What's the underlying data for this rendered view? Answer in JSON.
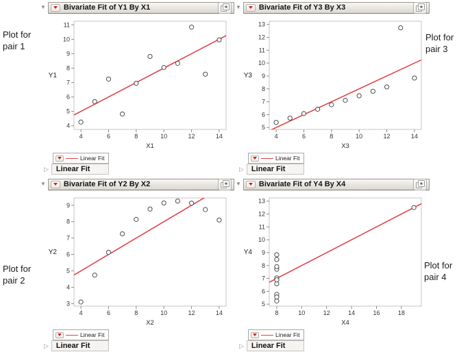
{
  "colors": {
    "fit_line": "#e0444a",
    "red_triangle_button": "#cc1f1f"
  },
  "icons": {
    "disclosure_open": "▼",
    "disclosure_closed": "▷"
  },
  "annotations": {
    "pair1": {
      "text": "Plot for pair 1"
    },
    "pair2": {
      "text": "Plot for pair 2"
    },
    "pair3": {
      "text": "Plot for pair 3"
    },
    "pair4": {
      "text": "Plot for pair 4"
    }
  },
  "panels": {
    "y1x1": {
      "title": "Bivariate Fit of Y1 By X1",
      "y_label": "Y1",
      "x_label": "X1",
      "legend_label": "Linear Fit",
      "section_label": "Linear Fit",
      "chart": {
        "type": "scatter",
        "x_ticks": [
          4,
          6,
          8,
          10,
          12,
          14
        ],
        "y_ticks": [
          4,
          5,
          6,
          7,
          8,
          9,
          10,
          11
        ],
        "x_range": [
          3.5,
          14.5
        ],
        "y_range": [
          3.75,
          11.25
        ],
        "points": [
          [
            10,
            8.04
          ],
          [
            8,
            6.95
          ],
          [
            13,
            7.58
          ],
          [
            9,
            8.81
          ],
          [
            11,
            8.33
          ],
          [
            14,
            9.96
          ],
          [
            6,
            7.24
          ],
          [
            4,
            4.26
          ],
          [
            12,
            10.84
          ],
          [
            7,
            4.82
          ],
          [
            5,
            5.68
          ]
        ],
        "fit": {
          "intercept": 3.0,
          "slope": 0.5
        }
      }
    },
    "y3x3": {
      "title": "Bivariate Fit of Y3 By X3",
      "y_label": "Y3",
      "x_label": "X3",
      "legend_label": "Linear Fit",
      "section_label": "Linear Fit",
      "chart": {
        "type": "scatter",
        "x_ticks": [
          4,
          6,
          8,
          10,
          12,
          14
        ],
        "y_ticks": [
          5,
          6,
          7,
          8,
          9,
          10,
          11,
          12,
          13
        ],
        "x_range": [
          3.5,
          14.5
        ],
        "y_range": [
          4.85,
          13.25
        ],
        "points": [
          [
            10,
            7.46
          ],
          [
            8,
            6.77
          ],
          [
            13,
            12.74
          ],
          [
            9,
            7.11
          ],
          [
            11,
            7.81
          ],
          [
            14,
            8.84
          ],
          [
            6,
            6.08
          ],
          [
            4,
            5.39
          ],
          [
            12,
            8.15
          ],
          [
            7,
            6.42
          ],
          [
            5,
            5.73
          ]
        ],
        "fit": {
          "intercept": 3.0,
          "slope": 0.5
        }
      }
    },
    "y2x2": {
      "title": "Bivariate Fit of Y2 By X2",
      "y_label": "Y2",
      "x_label": "X2",
      "legend_label": "Linear Fit",
      "section_label": "Linear Fit",
      "chart": {
        "type": "scatter",
        "x_ticks": [
          4,
          6,
          8,
          10,
          12,
          14
        ],
        "y_ticks": [
          3,
          4,
          5,
          6,
          7,
          8,
          9
        ],
        "x_range": [
          3.5,
          14.5
        ],
        "y_range": [
          2.85,
          9.45
        ],
        "points": [
          [
            10,
            9.14
          ],
          [
            8,
            8.14
          ],
          [
            13,
            8.74
          ],
          [
            9,
            8.77
          ],
          [
            11,
            9.26
          ],
          [
            14,
            8.1
          ],
          [
            6,
            6.13
          ],
          [
            4,
            3.1
          ],
          [
            12,
            9.13
          ],
          [
            7,
            7.26
          ],
          [
            5,
            4.74
          ]
        ],
        "fit": {
          "intercept": 3.0,
          "slope": 0.5
        }
      }
    },
    "y4x4": {
      "title": "Bivariate Fit of Y4 By X4",
      "y_label": "Y4",
      "x_label": "X4",
      "legend_label": "Linear Fit",
      "section_label": "Linear Fit",
      "chart": {
        "type": "scatter",
        "x_ticks": [
          8,
          10,
          12,
          14,
          16,
          18
        ],
        "y_ticks": [
          5,
          6,
          7,
          8,
          9,
          10,
          11,
          12,
          13
        ],
        "x_range": [
          7.4,
          19.6
        ],
        "y_range": [
          4.85,
          13.25
        ],
        "points": [
          [
            8,
            6.58
          ],
          [
            8,
            5.76
          ],
          [
            8,
            7.71
          ],
          [
            8,
            8.84
          ],
          [
            8,
            8.47
          ],
          [
            8,
            7.04
          ],
          [
            8,
            5.25
          ],
          [
            19,
            12.5
          ],
          [
            8,
            5.56
          ],
          [
            8,
            7.91
          ],
          [
            8,
            6.89
          ]
        ],
        "fit": {
          "intercept": 3.0,
          "slope": 0.5
        }
      }
    }
  }
}
